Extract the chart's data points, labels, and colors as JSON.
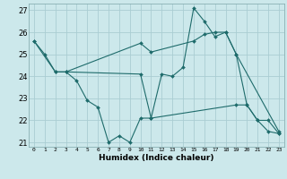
{
  "title": "",
  "xlabel": "Humidex (Indice chaleur)",
  "ylabel": "",
  "xlim": [
    -0.5,
    23.5
  ],
  "ylim": [
    20.8,
    27.3
  ],
  "yticks": [
    21,
    22,
    23,
    24,
    25,
    26,
    27
  ],
  "xticks": [
    0,
    1,
    2,
    3,
    4,
    5,
    6,
    7,
    8,
    9,
    10,
    11,
    12,
    13,
    14,
    15,
    16,
    17,
    18,
    19,
    20,
    21,
    22,
    23
  ],
  "bg_color": "#cce8eb",
  "grid_color": "#aacdd2",
  "line_color": "#1e6b6b",
  "lines": [
    {
      "x": [
        0,
        1,
        2,
        3,
        10,
        11,
        12,
        13,
        14,
        15,
        16,
        17,
        18,
        19,
        20,
        21,
        22,
        23
      ],
      "y": [
        25.6,
        25.0,
        24.2,
        24.2,
        24.1,
        22.1,
        24.1,
        24.0,
        24.4,
        27.1,
        26.5,
        25.8,
        26.0,
        25.0,
        22.7,
        22.0,
        21.5,
        21.4
      ]
    },
    {
      "x": [
        0,
        2,
        3,
        10,
        11,
        15,
        16,
        17,
        18,
        19,
        23
      ],
      "y": [
        25.6,
        24.2,
        24.2,
        25.5,
        25.1,
        25.6,
        25.9,
        26.0,
        26.0,
        25.0,
        21.5
      ]
    },
    {
      "x": [
        3,
        4,
        5,
        6,
        7,
        8,
        9,
        10,
        11,
        19,
        20,
        21,
        22,
        23
      ],
      "y": [
        24.2,
        23.8,
        22.9,
        22.6,
        21.0,
        21.3,
        21.0,
        22.1,
        22.1,
        22.7,
        22.7,
        22.0,
        22.0,
        21.4
      ]
    }
  ]
}
